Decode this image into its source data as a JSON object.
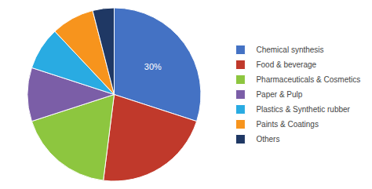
{
  "chart_data": {
    "type": "pie",
    "categories": [
      "Chemical synthesis",
      "Food & beverage",
      "Pharmaceuticals & Cosmetics",
      "Paper & Pulp",
      "Plastics & Synthetic rubber",
      "Paints & Coatings",
      "Others"
    ],
    "values": [
      30,
      22,
      18,
      10,
      8,
      8,
      4
    ],
    "value_labels": [
      "30%",
      null,
      null,
      null,
      null,
      null,
      null
    ],
    "colors": [
      "#4472C4",
      "#C0392B",
      "#8DC63F",
      "#7B5EA7",
      "#29ABE2",
      "#F7941D",
      "#1F3864"
    ],
    "legend": "right"
  }
}
